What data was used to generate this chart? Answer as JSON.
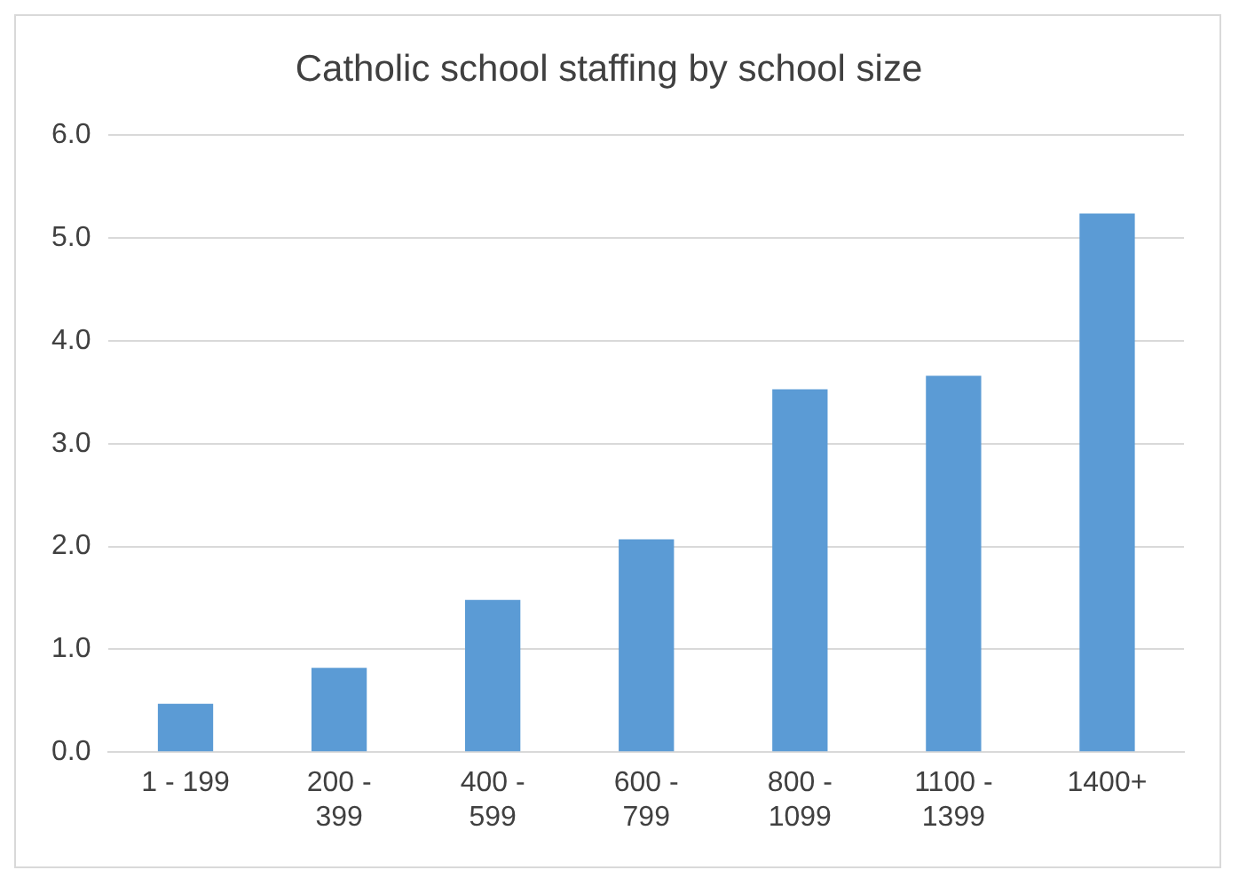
{
  "chart_data": {
    "type": "bar",
    "title": "Catholic school staffing by school size",
    "categories": [
      "1 - 199",
      "200 - 399",
      "400 - 599",
      "600 - 799",
      "800 - 1099",
      "1100 - 1399",
      "1400+"
    ],
    "values": [
      0.47,
      0.82,
      1.48,
      2.07,
      3.53,
      3.66,
      5.24
    ],
    "color": "#5b9bd5",
    "ylim": [
      0,
      6
    ],
    "yticks": [
      {
        "value": 0,
        "label": "0.0"
      },
      {
        "value": 1,
        "label": "1.0"
      },
      {
        "value": 2,
        "label": "2.0"
      },
      {
        "value": 3,
        "label": "3.0"
      },
      {
        "value": 4,
        "label": "4.0"
      },
      {
        "value": 5,
        "label": "5.0"
      },
      {
        "value": 6,
        "label": "6.0"
      }
    ],
    "grid": "y",
    "legend": false
  }
}
